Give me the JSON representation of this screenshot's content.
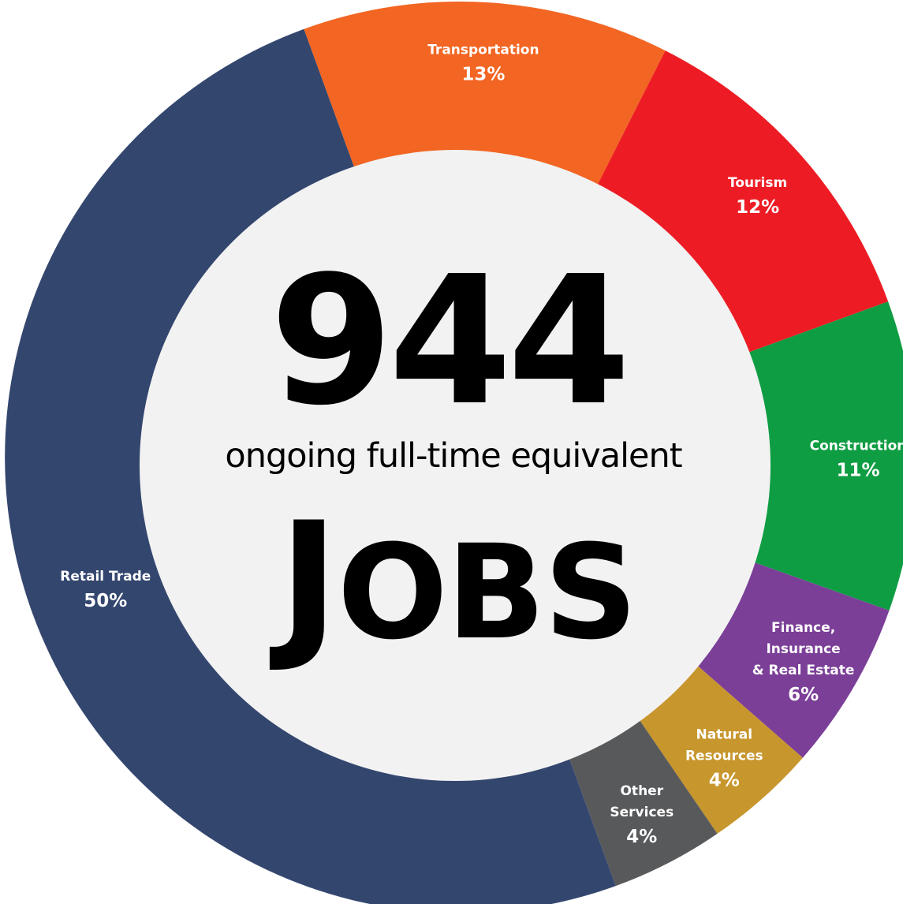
{
  "center": {
    "number": "944",
    "subtitle": "ongoing full-time equivalent",
    "word_big_letter": "J",
    "word_rest": "OBS"
  },
  "center_fill": "#f2f2f2",
  "chart_data": {
    "type": "pie",
    "style": "donut",
    "slices": [
      {
        "label_lines": [
          "Transportation"
        ],
        "percent_label": "13%",
        "value": 13,
        "color": "#f26522"
      },
      {
        "label_lines": [
          "Tourism"
        ],
        "percent_label": "12%",
        "value": 12,
        "color": "#ed1c24"
      },
      {
        "label_lines": [
          "Construction"
        ],
        "percent_label": "11%",
        "value": 11,
        "color": "#0f9d43"
      },
      {
        "label_lines": [
          "Finance,",
          "Insurance",
          "& Real Estate"
        ],
        "percent_label": "6%",
        "value": 6,
        "color": "#7b3f98"
      },
      {
        "label_lines": [
          "Natural",
          "Resources"
        ],
        "percent_label": "4%",
        "value": 4,
        "color": "#c7962d"
      },
      {
        "label_lines": [
          "Other",
          "Services"
        ],
        "percent_label": "4%",
        "value": 4,
        "color": "#58595b"
      },
      {
        "label_lines": [
          "Retail Trade"
        ],
        "percent_label": "50%",
        "value": 50,
        "color": "#33466e"
      }
    ]
  }
}
